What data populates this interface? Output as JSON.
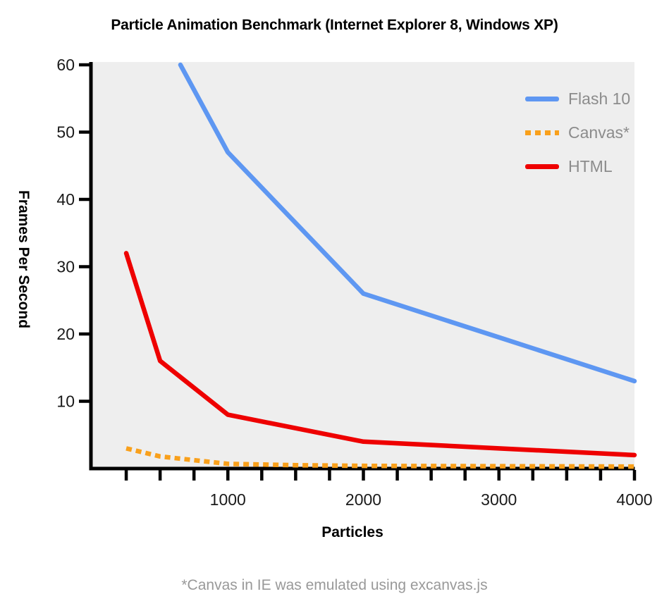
{
  "title": "Particle Animation Benchmark (Internet Explorer 8, Windows XP)",
  "footnote": "*Canvas in IE was emulated using excanvas.js",
  "colors": {
    "plot_background": "#eeeeee",
    "axis": "#000000",
    "tick_label": "#1a1a1a",
    "legend_text": "#8c8c8c",
    "footnote_text": "#999999"
  },
  "chart_data": {
    "type": "line",
    "title": "Particle Animation Benchmark (Internet Explorer 8, Windows XP)",
    "xlabel": "Particles",
    "ylabel": "Frames Per Second",
    "xlim": [
      0,
      4000
    ],
    "ylim": [
      0,
      60
    ],
    "x_labeled_ticks": [
      1000,
      2000,
      3000,
      4000
    ],
    "x_minor_tick_start": 250,
    "x_minor_tick_step": 250,
    "y_ticks": [
      10,
      20,
      30,
      40,
      50,
      60
    ],
    "grid": false,
    "legend_position": "top-right-inside",
    "series": [
      {
        "name": "Flash 10",
        "color": "#5e97f2",
        "style": "solid",
        "points": [
          [
            650,
            60
          ],
          [
            1000,
            47
          ],
          [
            2000,
            26
          ],
          [
            3000,
            19.5
          ],
          [
            4000,
            13
          ]
        ],
        "note": "curve is clipped at top of plot (values above 60 fps not shown); line enters plot at about 650 particles"
      },
      {
        "name": "Canvas*",
        "color": "#f9a01b",
        "style": "dotted",
        "points": [
          [
            250,
            3
          ],
          [
            500,
            1.8
          ],
          [
            1000,
            0.7
          ],
          [
            1500,
            0.5
          ],
          [
            2000,
            0.4
          ],
          [
            3000,
            0.35
          ],
          [
            4000,
            0.3
          ]
        ]
      },
      {
        "name": "HTML",
        "color": "#ee0000",
        "style": "solid",
        "points": [
          [
            250,
            32
          ],
          [
            500,
            16
          ],
          [
            1000,
            8
          ],
          [
            2000,
            4
          ],
          [
            3000,
            3
          ],
          [
            4000,
            2
          ]
        ]
      }
    ]
  }
}
